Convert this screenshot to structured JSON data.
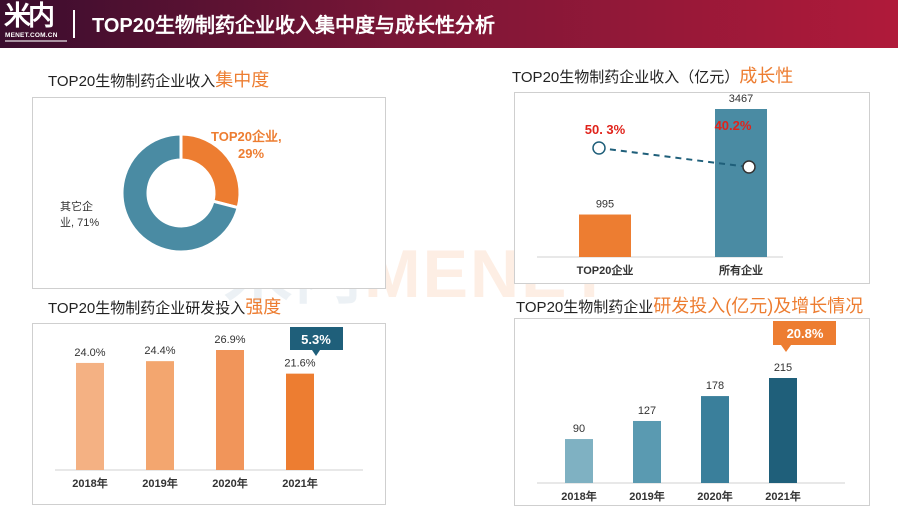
{
  "header": {
    "title": "TOP20生物制药企业收入集中度与成长性分析",
    "logo_text": "米内",
    "logo_sub": "MENET.COM.CN"
  },
  "watermark": {
    "part_a": "米内",
    "part_b": "MENET"
  },
  "sections": {
    "concentration": {
      "title": "TOP20生物制药企业收入",
      "highlight": "集中度"
    },
    "growth": {
      "title": "TOP20生物制药企业收入（亿元）",
      "highlight": "成长性"
    },
    "rd_intensity": {
      "title": "TOP20生物制药企业研发投入",
      "highlight": "强度"
    },
    "rd_growth": {
      "title": "TOP20生物制药企业",
      "highlight": "研发投入(亿元)及增长情况"
    }
  },
  "colors": {
    "orange": "#ed7d31",
    "teal": "#4a8ba3",
    "light_orange": "#f4b183",
    "dark_teal": "#1f5f7a",
    "red": "#e0231b"
  },
  "chart_data": [
    {
      "id": "concentration",
      "type": "pie",
      "categories": [
        "TOP20企业",
        "其它企业"
      ],
      "values": [
        29,
        71
      ],
      "labels": [
        {
          "line1": "TOP20企业,",
          "line2": "29%"
        },
        {
          "line1": "其它企",
          "line2": "业, 71%"
        }
      ]
    },
    {
      "id": "growth",
      "type": "bar",
      "categories": [
        "TOP20企业",
        "所有企业"
      ],
      "values": [
        995,
        3467
      ],
      "value_labels": [
        "995",
        "3467"
      ],
      "growth_rates": [
        50.3,
        40.2
      ],
      "growth_labels": [
        "50. 3%",
        "40.2%"
      ]
    },
    {
      "id": "rd_intensity",
      "type": "bar",
      "categories": [
        "2018年",
        "2019年",
        "2020年",
        "2021年"
      ],
      "values": [
        24.0,
        24.4,
        26.9,
        21.6
      ],
      "value_labels": [
        "24.0%",
        "24.4%",
        "26.9%",
        "21.6%"
      ],
      "callout": "5.3%"
    },
    {
      "id": "rd_growth",
      "type": "bar",
      "categories": [
        "2018年",
        "2019年",
        "2020年",
        "2021年"
      ],
      "values": [
        90,
        127,
        178,
        215
      ],
      "value_labels": [
        "90",
        "127",
        "178",
        "215"
      ],
      "callout": "20.8%"
    }
  ]
}
